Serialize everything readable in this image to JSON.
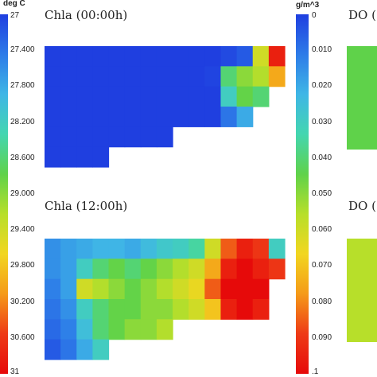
{
  "colors": {
    "ramp": [
      "#1f3fe0",
      "#2d7be8",
      "#3fb6e6",
      "#43d6b0",
      "#5fd24a",
      "#b7df2a",
      "#f2d620",
      "#f59a18",
      "#ee3a16",
      "#e60a0a"
    ],
    "background": "#ffffff"
  },
  "left_colorbar": {
    "unit": "deg C",
    "top_label": "27",
    "bottom_label": "31",
    "ticks": [
      "27.400",
      "27.800",
      "28.200",
      "28.600",
      "29.000",
      "29.400",
      "29.800",
      "30.200",
      "30.600"
    ]
  },
  "right_colorbar": {
    "unit": "g/m^3",
    "top_label": "0",
    "bottom_label": ".1",
    "ticks": [
      "0.010",
      "0.020",
      "0.030",
      "0.040",
      "0.050",
      "0.060",
      "0.070",
      "0.080",
      "0.090"
    ]
  },
  "panels": [
    {
      "title": "Chla (00:00h)"
    },
    {
      "title": "Chla (12:00h)"
    },
    {
      "title": "DO ("
    },
    {
      "title": "DO ("
    }
  ],
  "chart_data": [
    {
      "type": "heatmap",
      "title": "Chla (00:00h)",
      "colorbar_unit": "g/m^3",
      "value_range": [
        0,
        0.1
      ],
      "grid": {
        "cols": 15,
        "rows": 6
      },
      "values": [
        [
          0.0,
          0.0,
          0.0,
          0.0,
          0.0,
          0.0,
          0.0,
          0.0,
          0.0,
          0.0,
          0.0,
          0.002,
          0.005,
          0.06,
          0.095
        ],
        [
          0.0,
          0.0,
          0.0,
          0.0,
          0.0,
          0.0,
          0.0,
          0.0,
          0.0,
          0.0,
          0.001,
          0.04,
          0.05,
          0.055,
          0.075
        ],
        [
          0.0,
          0.0,
          0.0,
          0.0,
          0.0,
          0.0,
          0.0,
          0.0,
          0.0,
          0.0,
          0.0,
          0.03,
          0.045,
          0.04,
          null
        ],
        [
          0.0,
          0.0,
          0.0,
          0.0,
          0.0,
          0.0,
          0.0,
          0.0,
          0.0,
          0.0,
          0.0,
          0.01,
          0.02,
          null,
          null
        ],
        [
          0.0,
          0.0,
          0.0,
          0.0,
          0.0,
          0.0,
          0.0,
          0.0,
          null,
          null,
          null,
          null,
          null,
          null,
          null
        ],
        [
          0.0,
          0.0,
          0.0,
          0.0,
          null,
          null,
          null,
          null,
          null,
          null,
          null,
          null,
          null,
          null,
          null
        ]
      ]
    },
    {
      "type": "heatmap",
      "title": "Chla (12:00h)",
      "colorbar_unit": "g/m^3",
      "value_range": [
        0,
        0.1
      ],
      "grid": {
        "cols": 15,
        "rows": 6
      },
      "values": [
        [
          0.015,
          0.018,
          0.02,
          0.022,
          0.022,
          0.02,
          0.024,
          0.028,
          0.03,
          0.035,
          0.06,
          0.085,
          0.095,
          0.09,
          0.03
        ],
        [
          0.015,
          0.018,
          0.03,
          0.04,
          0.045,
          0.04,
          0.045,
          0.05,
          0.055,
          0.06,
          0.075,
          0.095,
          0.1,
          0.095,
          0.09
        ],
        [
          0.012,
          0.018,
          0.06,
          0.055,
          0.05,
          0.045,
          0.05,
          0.055,
          0.06,
          0.065,
          0.085,
          0.1,
          0.1,
          0.1,
          null
        ],
        [
          0.01,
          0.015,
          0.03,
          0.04,
          0.045,
          0.045,
          0.05,
          0.05,
          0.055,
          0.06,
          0.07,
          0.095,
          0.1,
          0.095,
          null
        ],
        [
          0.008,
          0.012,
          0.025,
          0.04,
          0.045,
          0.05,
          0.05,
          0.055,
          null,
          null,
          null,
          null,
          null,
          null,
          null
        ],
        [
          0.005,
          0.01,
          0.02,
          0.03,
          null,
          null,
          null,
          null,
          null,
          null,
          null,
          null,
          null,
          null,
          null
        ]
      ]
    }
  ]
}
